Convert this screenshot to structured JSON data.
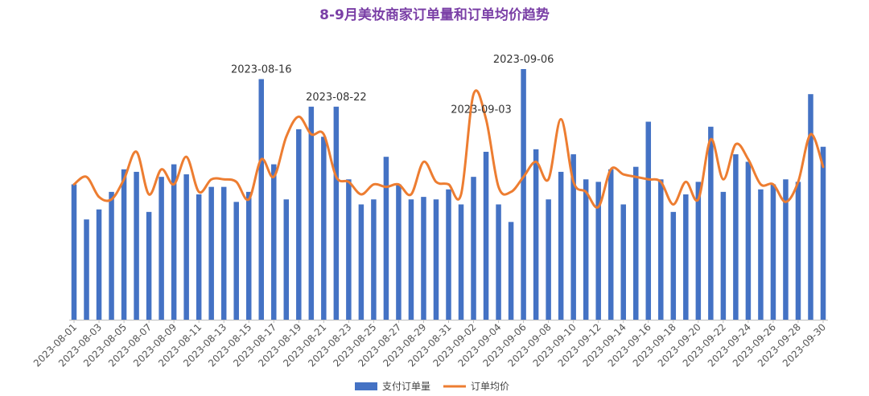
{
  "chart_data": {
    "type": "bar",
    "title": "8-9月美妆商家订单量和订单均价趋势",
    "x": [
      "2023-08-01",
      "2023-08-02",
      "2023-08-03",
      "2023-08-04",
      "2023-08-05",
      "2023-08-06",
      "2023-08-07",
      "2023-08-08",
      "2023-08-09",
      "2023-08-10",
      "2023-08-11",
      "2023-08-12",
      "2023-08-13",
      "2023-08-14",
      "2023-08-15",
      "2023-08-16",
      "2023-08-17",
      "2023-08-18",
      "2023-08-19",
      "2023-08-20",
      "2023-08-21",
      "2023-08-22",
      "2023-08-23",
      "2023-08-24",
      "2023-08-25",
      "2023-08-26",
      "2023-08-27",
      "2023-08-28",
      "2023-08-29",
      "2023-08-30",
      "2023-08-31",
      "2023-09-01",
      "2023-09-02",
      "2023-09-03",
      "2023-09-04",
      "2023-09-05",
      "2023-09-06",
      "2023-09-07",
      "2023-09-08",
      "2023-09-09",
      "2023-09-10",
      "2023-09-11",
      "2023-09-12",
      "2023-09-13",
      "2023-09-14",
      "2023-09-15",
      "2023-09-16",
      "2023-09-17",
      "2023-09-18",
      "2023-09-19",
      "2023-09-20",
      "2023-09-21",
      "2023-09-22",
      "2023-09-23",
      "2023-09-24",
      "2023-09-25",
      "2023-09-26",
      "2023-09-27",
      "2023-09-28",
      "2023-09-29",
      "2023-09-30"
    ],
    "tick_labels": [
      "2023-08-01",
      "2023-08-03",
      "2023-08-05",
      "2023-08-07",
      "2023-08-09",
      "2023-08-11",
      "2023-08-13",
      "2023-08-15",
      "2023-08-17",
      "2023-08-19",
      "2023-08-21",
      "2023-08-23",
      "2023-08-25",
      "2023-08-27",
      "2023-08-29",
      "2023-08-31",
      "2023-09-02",
      "2023-09-04",
      "2023-09-06",
      "2023-09-08",
      "2023-09-10",
      "2023-09-12",
      "2023-09-14",
      "2023-09-16",
      "2023-09-18",
      "2023-09-20",
      "2023-09-22",
      "2023-09-24",
      "2023-09-26",
      "2023-09-28",
      "2023-09-30"
    ],
    "ylim": [
      0,
      100
    ],
    "y2lim": [
      0,
      100
    ],
    "series": [
      {
        "name": "支付订单量",
        "kind": "bar",
        "color": "#4472c4",
        "values": [
          54,
          40,
          44,
          51,
          60,
          59,
          43,
          57,
          62,
          58,
          50,
          53,
          53,
          47,
          51,
          96,
          62,
          48,
          76,
          85,
          73,
          85,
          56,
          46,
          48,
          65,
          54,
          48,
          49,
          48,
          52,
          46,
          57,
          67,
          46,
          39,
          100,
          68,
          48,
          59,
          66,
          56,
          55,
          60,
          46,
          61,
          79,
          56,
          43,
          50,
          55,
          77,
          51,
          66,
          63,
          52,
          54,
          56,
          55,
          90,
          69
        ]
      },
      {
        "name": "订单均价",
        "kind": "line",
        "color": "#ed7d31",
        "smooth": true,
        "values": [
          54,
          57,
          49,
          48,
          56,
          67,
          50,
          60,
          54,
          65,
          51,
          56,
          56,
          55,
          48,
          64,
          57,
          73,
          81,
          74,
          74,
          57,
          55,
          50,
          54,
          53,
          54,
          50,
          63,
          55,
          54,
          50,
          90,
          80,
          53,
          51,
          57,
          63,
          56,
          80,
          55,
          51,
          45,
          60,
          58,
          57,
          56,
          55,
          46,
          55,
          48,
          72,
          56,
          70,
          64,
          54,
          54,
          47,
          55,
          74,
          61
        ]
      }
    ],
    "annotations": [
      "2023-08-16",
      "2023-08-22",
      "2023-09-03",
      "2023-09-06"
    ],
    "legend": {
      "position": "bottom",
      "items": [
        "支付订单量",
        "订单均价"
      ]
    },
    "grid": false
  }
}
